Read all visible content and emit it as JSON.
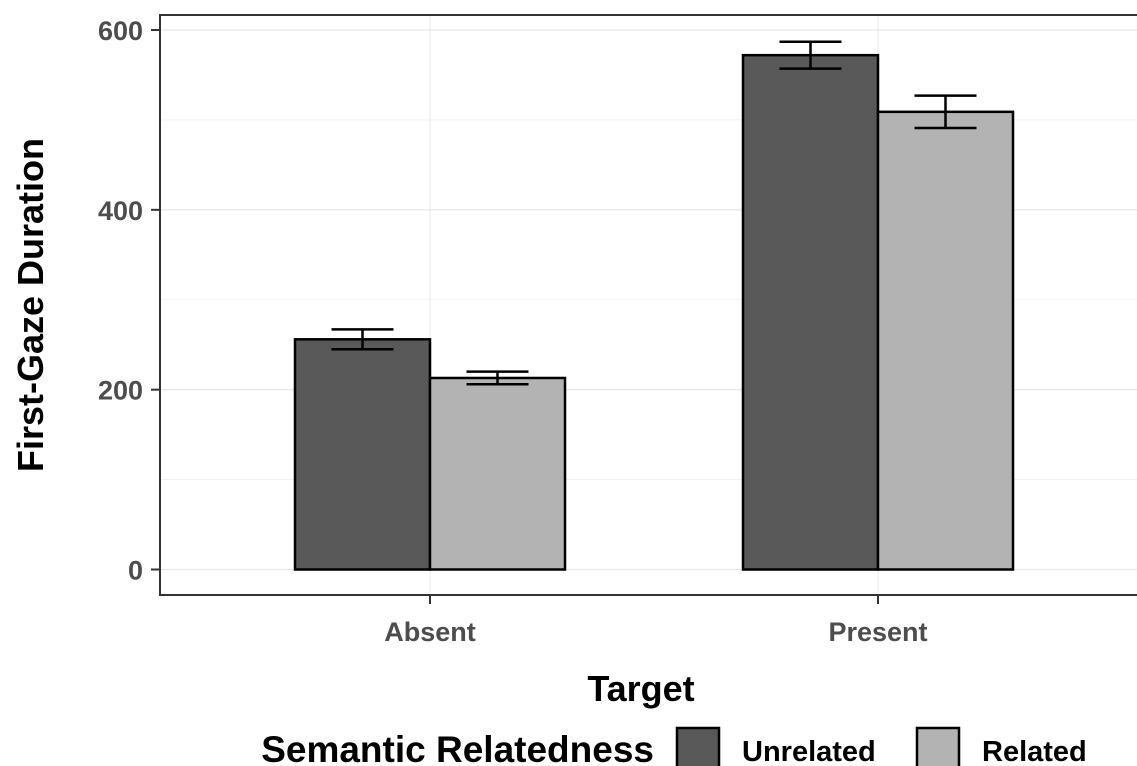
{
  "chart_data": {
    "type": "bar",
    "xlabel": "Target",
    "ylabel": "First-Gaze Duration",
    "categories": [
      "Absent",
      "Present"
    ],
    "series": [
      {
        "name": "Unrelated",
        "color": "#595959",
        "values": [
          256,
          572
        ],
        "error": [
          11,
          15
        ]
      },
      {
        "name": "Related",
        "color": "#b3b3b3",
        "values": [
          213,
          509
        ],
        "error": [
          7,
          18
        ]
      }
    ],
    "yticks": [
      0,
      200,
      400,
      600
    ],
    "ylim": [
      -28,
      616
    ],
    "grid": true,
    "legend": {
      "title": "Semantic Relatedness",
      "position": "bottom"
    }
  }
}
